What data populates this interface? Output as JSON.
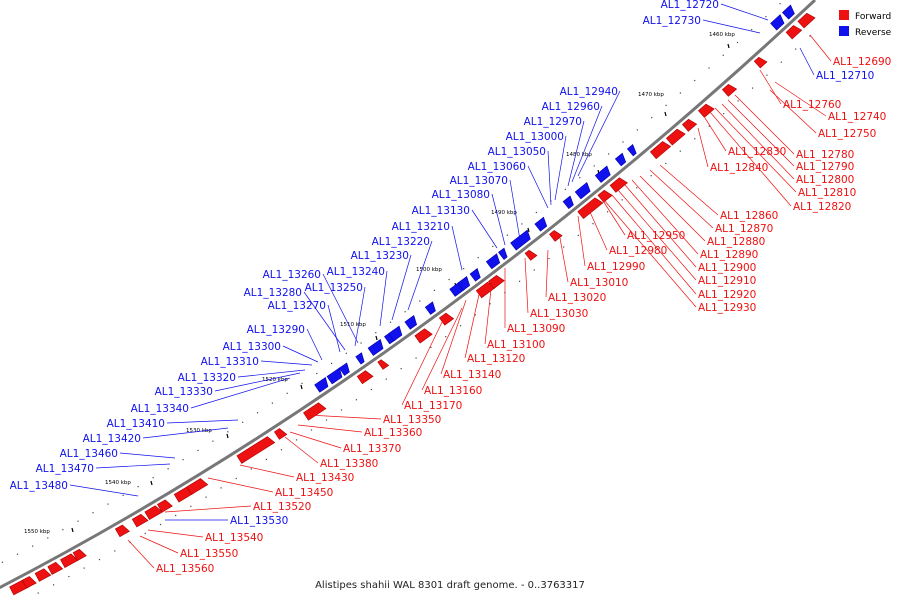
{
  "caption": "Alistipes shahii WAL 8301 draft genome. - 0..3763317",
  "legend": {
    "forward": {
      "label": "Forward",
      "color": "#ee1111"
    },
    "reverse": {
      "label": "Reverse",
      "color": "#1111ee"
    }
  },
  "ticks": [
    "1460 kbp",
    "1470 kbp",
    "1480 kbp",
    "1490 kbp",
    "1500 kbp",
    "1510 kbp",
    "1520 kbp",
    "1530 kbp",
    "1540 kbp",
    "1550 kbp"
  ],
  "reverse_labels": [
    "AL1_12720",
    "AL1_12730",
    "AL1_12940",
    "AL1_12960",
    "AL1_12970",
    "AL1_13000",
    "AL1_13050",
    "AL1_13060",
    "AL1_13070",
    "AL1_13080",
    "AL1_13130",
    "AL1_13210",
    "AL1_13220",
    "AL1_13230",
    "AL1_13240",
    "AL1_13260",
    "AL1_13250",
    "AL1_13280",
    "AL1_13270",
    "AL1_13290",
    "AL1_13300",
    "AL1_13310",
    "AL1_13320",
    "AL1_13330",
    "AL1_13340",
    "AL1_13410",
    "AL1_13420",
    "AL1_13460",
    "AL1_13470",
    "AL1_13480",
    "AL1_13530",
    "AL1_12710"
  ],
  "forward_labels": [
    "AL1_12690",
    "AL1_12760",
    "AL1_12740",
    "AL1_12750",
    "AL1_12780",
    "AL1_12790",
    "AL1_12800",
    "AL1_12810",
    "AL1_12820",
    "AL1_12830",
    "AL1_12840",
    "AL1_12860",
    "AL1_12870",
    "AL1_12880",
    "AL1_12890",
    "AL1_12900",
    "AL1_12910",
    "AL1_12920",
    "AL1_12930",
    "AL1_12950",
    "AL1_12980",
    "AL1_12990",
    "AL1_13010",
    "AL1_13020",
    "AL1_13030",
    "AL1_13090",
    "AL1_13100",
    "AL1_13120",
    "AL1_13140",
    "AL1_13160",
    "AL1_13170",
    "AL1_13350",
    "AL1_13360",
    "AL1_13370",
    "AL1_13380",
    "AL1_13430",
    "AL1_13450",
    "AL1_13520",
    "AL1_13540",
    "AL1_13550",
    "AL1_13560"
  ]
}
